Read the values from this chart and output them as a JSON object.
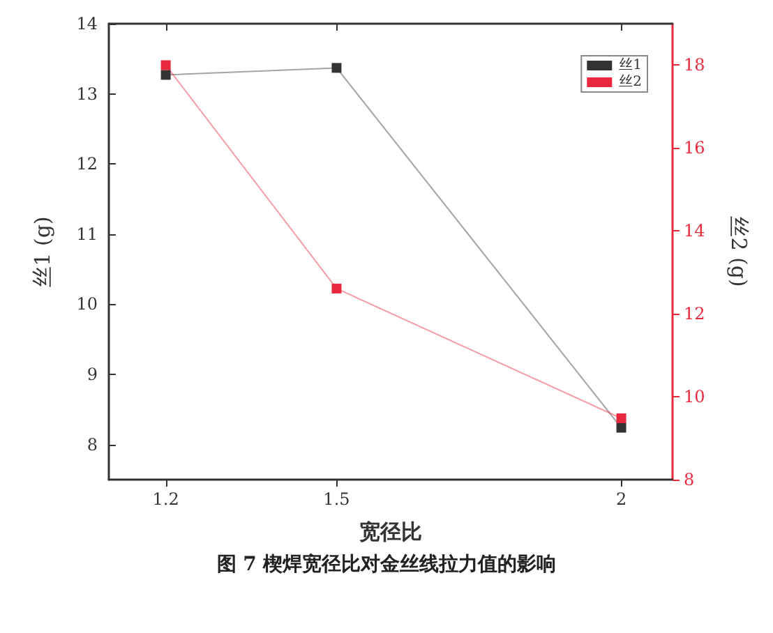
{
  "chart_data": {
    "type": "line",
    "xlabel": "宽径比",
    "ylabel": "丝1 (g)",
    "y2label": "丝2 (g)",
    "x": [
      1.2,
      1.5,
      2
    ],
    "xlim": [
      1.1,
      2.09
    ],
    "xticks": [
      1.2,
      1.5,
      2
    ],
    "ylim": [
      7.5,
      14
    ],
    "yticks": [
      8,
      9,
      10,
      11,
      12,
      13,
      14
    ],
    "y2lim": [
      8,
      19
    ],
    "y2ticks": [
      8,
      10,
      12,
      14,
      16,
      18
    ],
    "series": [
      {
        "name": "丝1",
        "color": "#333333",
        "values": [
          13.27,
          13.37,
          8.24
        ]
      },
      {
        "name": "丝2",
        "color": "#e8283c",
        "values": [
          18.0,
          12.61,
          9.48
        ],
        "axis": "y2"
      }
    ],
    "marker": "square",
    "legend": "top right",
    "grid": false,
    "annotations": [
      "图 7 楔焊宽径比对金丝线拉力值的影响"
    ]
  }
}
